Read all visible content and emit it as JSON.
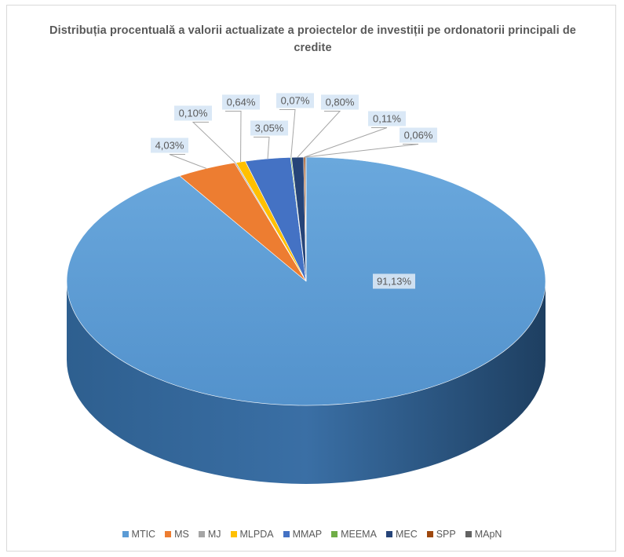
{
  "chart_data": {
    "type": "pie",
    "title": "Distribuția procentuală a valorii actualizate a proiectelor de investiții pe ordonatorii principali de credite",
    "legend_position": "bottom",
    "categories": [
      "MTIC",
      "MS",
      "MJ",
      "MLPDA",
      "MMAP",
      "MEEMA",
      "MEC",
      "SPP",
      "MApN"
    ],
    "values": [
      91.13,
      4.03,
      0.1,
      0.64,
      3.05,
      0.07,
      0.8,
      0.11,
      0.06
    ],
    "labels": [
      "91,13%",
      "4,03%",
      "0,10%",
      "0,64%",
      "3,05%",
      "0,07%",
      "0,80%",
      "0,11%",
      "0,06%"
    ],
    "colors": [
      "#5b9bd5",
      "#ed7d31",
      "#a5a5a5",
      "#ffc000",
      "#4472c4",
      "#70ad47",
      "#264478",
      "#9e480e",
      "#636363"
    ]
  }
}
